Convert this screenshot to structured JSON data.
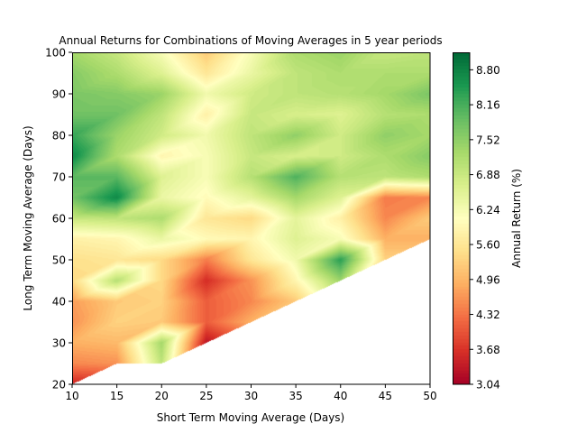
{
  "chart_data": {
    "type": "heatmap",
    "style": "filled-contour (tricontourf)",
    "title": "Annual Returns for Combinations of Moving Averages in 5 year periods",
    "xlabel": "Short Term Moving Average (Days)",
    "ylabel": "Long Term Moving Average (Days)",
    "xlim": [
      10,
      50
    ],
    "ylim": [
      20,
      100
    ],
    "xticks": [
      "10",
      "15",
      "20",
      "25",
      "30",
      "35",
      "40",
      "45",
      "50"
    ],
    "yticks": [
      "20",
      "30",
      "40",
      "50",
      "60",
      "70",
      "80",
      "90",
      "100"
    ],
    "colorbar": {
      "label": "Annual Return (%)",
      "colormap": "RdYlGn",
      "range": [
        3.04,
        9.12
      ],
      "ticks": [
        "3.04",
        "3.68",
        "4.32",
        "4.96",
        "5.60",
        "6.24",
        "6.88",
        "7.52",
        "8.16",
        "8.80"
      ],
      "placement": "right"
    },
    "x": [
      10,
      15,
      20,
      25,
      30,
      35,
      40,
      45,
      50
    ],
    "y": [
      20,
      25,
      30,
      35,
      40,
      45,
      50,
      55,
      60,
      65,
      70,
      75,
      80,
      85,
      90,
      95,
      100
    ],
    "z_note": "rows indexed by y (long MA), columns by x (short MA); null where long < short + 5",
    "z": [
      [
        3.5,
        null,
        null,
        null,
        null,
        null,
        null,
        null,
        null
      ],
      [
        4.5,
        4.6,
        7.0,
        null,
        null,
        null,
        null,
        null,
        null
      ],
      [
        4.9,
        5.0,
        7.3,
        3.3,
        null,
        null,
        null,
        null,
        null
      ],
      [
        4.6,
        5.3,
        5.2,
        4.1,
        4.9,
        null,
        null,
        null,
        null
      ],
      [
        4.7,
        5.2,
        5.3,
        4.1,
        4.5,
        5.2,
        null,
        null,
        null
      ],
      [
        5.4,
        7.1,
        5.4,
        3.6,
        4.6,
        5.9,
        7.4,
        null,
        null
      ],
      [
        5.5,
        5.6,
        5.4,
        4.4,
        5.6,
        6.3,
        8.4,
        5.3,
        null
      ],
      [
        5.8,
        5.9,
        6.4,
        6.0,
        5.9,
        6.6,
        6.2,
        4.9,
        4.9
      ],
      [
        6.9,
        7.0,
        7.2,
        5.6,
        5.4,
        6.5,
        5.8,
        4.5,
        5.2
      ],
      [
        7.8,
        8.7,
        6.4,
        6.0,
        6.5,
        7.3,
        6.6,
        4.4,
        4.5
      ],
      [
        8.0,
        8.0,
        6.6,
        6.2,
        7.1,
        8.1,
        7.1,
        7.0,
        7.2
      ],
      [
        8.7,
        7.2,
        5.9,
        6.2,
        6.9,
        6.7,
        6.8,
        7.2,
        7.6
      ],
      [
        8.3,
        7.4,
        6.8,
        6.3,
        7.0,
        7.5,
        6.8,
        7.5,
        7.3
      ],
      [
        7.8,
        7.8,
        7.0,
        5.8,
        6.9,
        6.7,
        6.6,
        7.1,
        7.2
      ],
      [
        7.7,
        7.6,
        7.4,
        6.3,
        6.8,
        7.0,
        7.1,
        7.3,
        7.7
      ],
      [
        7.6,
        7.2,
        6.6,
        5.6,
        6.4,
        7.0,
        7.2,
        7.2,
        7.2
      ],
      [
        7.3,
        6.9,
        6.2,
        5.2,
        6.2,
        7.2,
        7.4,
        6.9,
        7.0
      ]
    ]
  }
}
